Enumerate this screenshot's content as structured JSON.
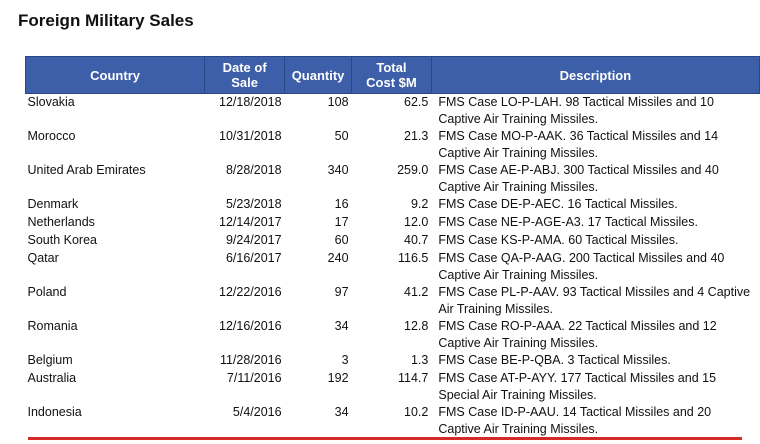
{
  "header": {
    "title": "Foreign Military Sales"
  },
  "table": {
    "columns": [
      "Country",
      "Date of Sale",
      "Quantity",
      "Total Cost $M",
      "Description"
    ],
    "rows": [
      [
        "Slovakia",
        "12/18/2018",
        "108",
        "62.5",
        "FMS Case LO-P-LAH. 98 Tactical Missiles and 10 Captive Air Training Missiles."
      ],
      [
        "Morocco",
        "10/31/2018",
        "50",
        "21.3",
        "FMS Case MO-P-AAK. 36 Tactical Missiles and 14 Captive Air Training Missiles."
      ],
      [
        "United Arab Emirates",
        "8/28/2018",
        "340",
        "259.0",
        "FMS Case AE-P-ABJ. 300 Tactical Missiles and 40 Captive Air Training Missiles."
      ],
      [
        "Denmark",
        "5/23/2018",
        "16",
        "9.2",
        "FMS Case DE-P-AEC. 16 Tactical Missiles."
      ],
      [
        "Netherlands",
        "12/14/2017",
        "17",
        "12.0",
        "FMS Case NE-P-AGE-A3. 17 Tactical Missiles."
      ],
      [
        "South Korea",
        "9/24/2017",
        "60",
        "40.7",
        "FMS Case KS-P-AMA. 60 Tactical Missiles."
      ],
      [
        "Qatar",
        "6/16/2017",
        "240",
        "116.5",
        "FMS Case QA-P-AAG. 200 Tactical Missiles and 40 Captive Air Training Missiles."
      ],
      [
        "Poland",
        "12/22/2016",
        "97",
        "41.2",
        "FMS Case PL-P-AAV. 93 Tactical Missiles and 4 Captive Air Training Missiles."
      ],
      [
        "Romania",
        "12/16/2016",
        "34",
        "12.8",
        "FMS Case RO-P-AAA. 22 Tactical Missiles and 12 Captive Air Training Missiles."
      ],
      [
        "Belgium",
        "11/28/2016",
        "3",
        "1.3",
        "FMS Case BE-P-QBA. 3 Tactical Missiles."
      ],
      [
        "Australia",
        "7/11/2016",
        "192",
        "114.7",
        "FMS Case AT-P-AYY. 177 Tactical Missiles and 15 Special Air Training Missiles."
      ],
      [
        "Indonesia",
        "5/4/2016",
        "34",
        "10.2",
        "FMS Case ID-P-AAU. 14 Tactical Missiles and 20 Captive Air Training Missiles."
      ]
    ]
  }
}
